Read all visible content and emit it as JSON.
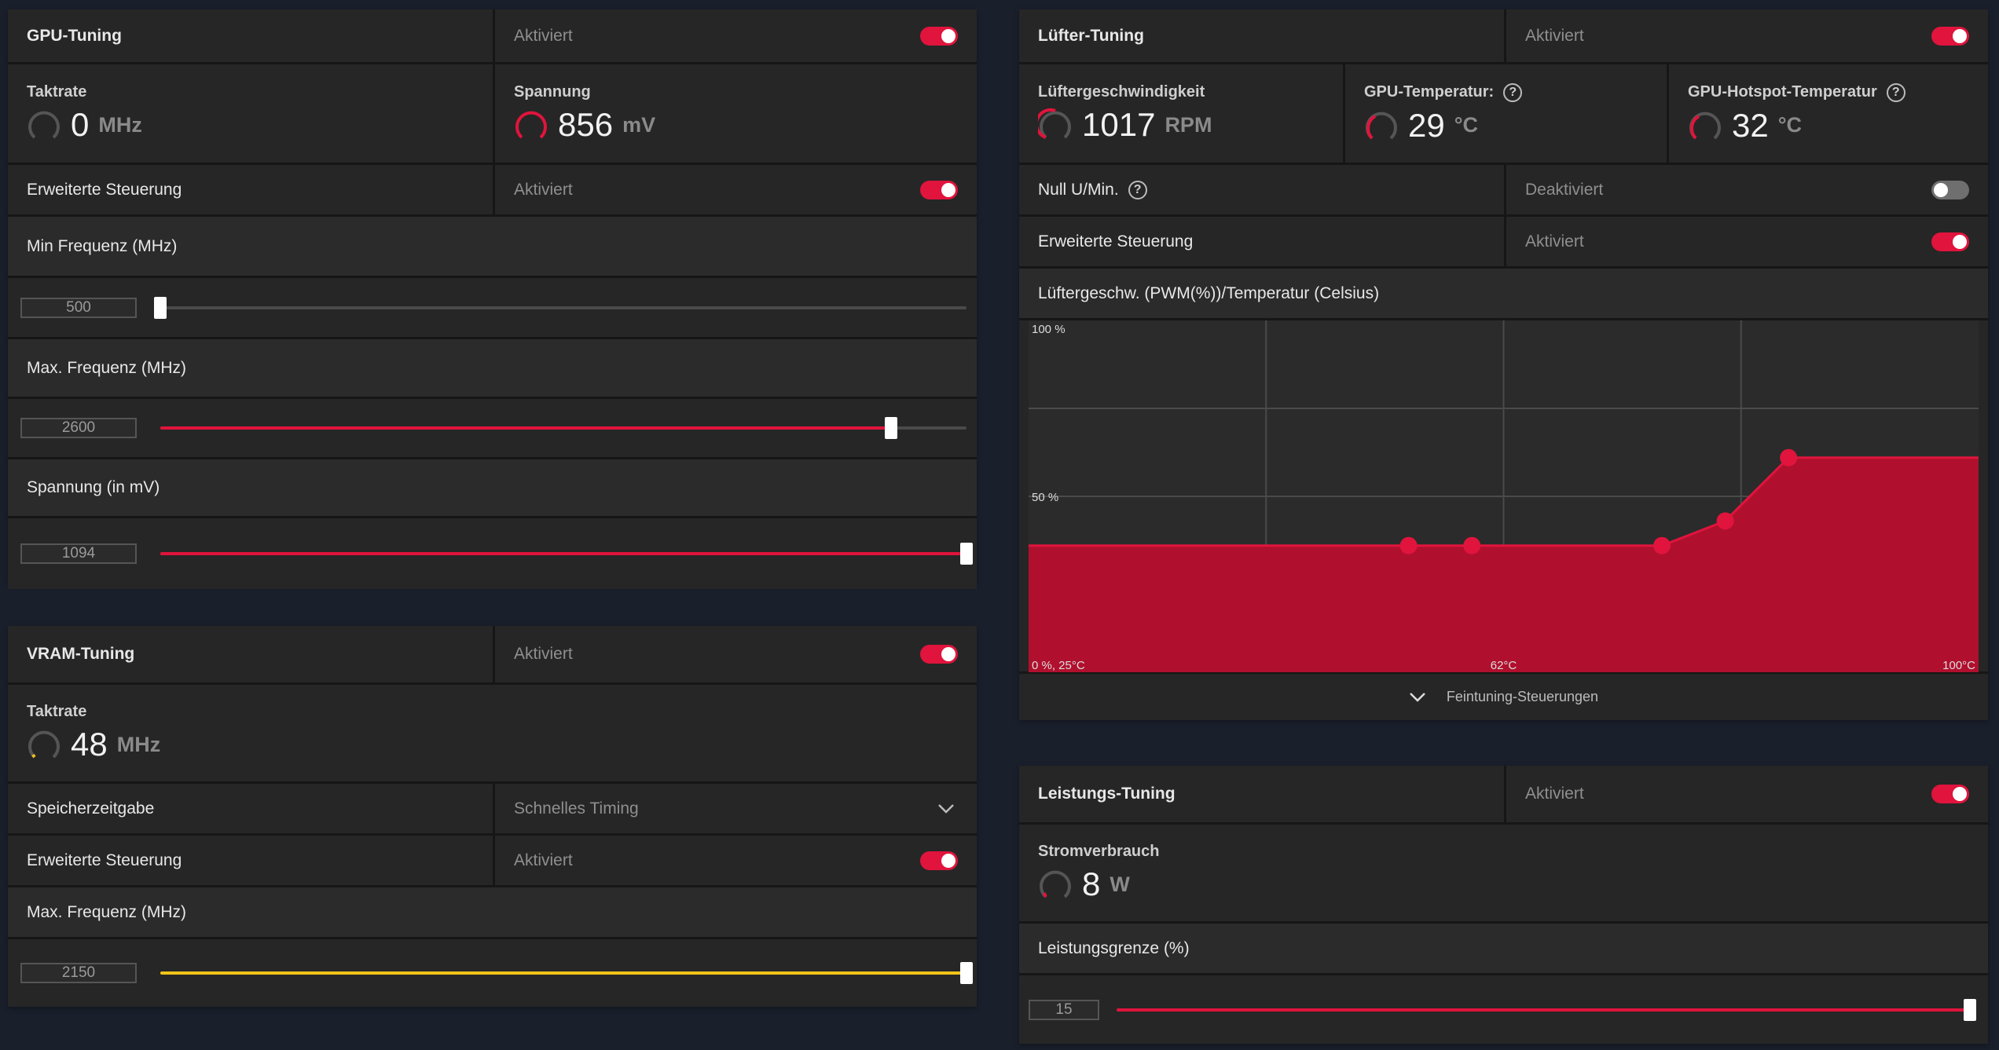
{
  "colors": {
    "accent": "#e0143c",
    "vram_accent": "#f0c419",
    "background": "#1a1f2c",
    "panel": "#262626"
  },
  "gpu": {
    "title": "GPU-Tuning",
    "status": "Aktiviert",
    "clock": {
      "label": "Taktrate",
      "value": "0",
      "unit": "MHz"
    },
    "voltage": {
      "label": "Spannung",
      "value": "856",
      "unit": "mV"
    },
    "advanced": {
      "label": "Erweiterte Steuerung",
      "status": "Aktiviert"
    },
    "min_freq": {
      "label": "Min Frequenz (MHz)",
      "value": "500",
      "fraction": 0.0
    },
    "max_freq": {
      "label": "Max. Frequenz (MHz)",
      "value": "2600",
      "fraction": 0.906
    },
    "volt_slider": {
      "label": "Spannung (in mV)",
      "value": "1094",
      "fraction": 1.0
    }
  },
  "vram": {
    "title": "VRAM-Tuning",
    "status": "Aktiviert",
    "clock": {
      "label": "Taktrate",
      "value": "48",
      "unit": "MHz"
    },
    "timing": {
      "label": "Speicherzeitgabe",
      "value": "Schnelles Timing"
    },
    "advanced": {
      "label": "Erweiterte Steuerung",
      "status": "Aktiviert"
    },
    "max_freq": {
      "label": "Max. Frequenz (MHz)",
      "value": "2150",
      "fraction": 1.0
    }
  },
  "fan": {
    "title": "Lüfter-Tuning",
    "status": "Aktiviert",
    "speed": {
      "label": "Lüftergeschwindigkeit",
      "value": "1017",
      "unit": "RPM"
    },
    "gpu_temp": {
      "label": "GPU-Temperatur:",
      "value": "29",
      "unit": "°C"
    },
    "hotspot_temp": {
      "label": "GPU-Hotspot-Temperatur",
      "value": "32",
      "unit": "°C"
    },
    "zero_rpm": {
      "label": "Null U/Min.",
      "status": "Deaktiviert"
    },
    "advanced": {
      "label": "Erweiterte Steuerung",
      "status": "Aktiviert"
    },
    "curve_title": "Lüftergeschw. (PWM(%))/Temperatur (Celsius)",
    "fine_tuning": "Feintuning-Steuerungen"
  },
  "power": {
    "title": "Leistungs-Tuning",
    "status": "Aktiviert",
    "consumption": {
      "label": "Stromverbrauch",
      "value": "8",
      "unit": "W"
    },
    "limit": {
      "label": "Leistungsgrenze (%)",
      "value": "15",
      "fraction": 1.0
    }
  },
  "chart_data": {
    "type": "area",
    "xlim": [
      25,
      100
    ],
    "ylim": [
      0,
      100
    ],
    "grid": true,
    "tick_labels": {
      "y_top": "100 %",
      "y_mid": "50 %",
      "origin": "0 %, 25°C",
      "x_mid": "62°C",
      "x_max": "100°C"
    },
    "points": [
      {
        "x": 55,
        "y": 36
      },
      {
        "x": 60,
        "y": 36
      },
      {
        "x": 75,
        "y": 36
      },
      {
        "x": 80,
        "y": 43
      },
      {
        "x": 85,
        "y": 61
      }
    ],
    "fill_color": "#b0102e",
    "point_color": "#e0143c"
  }
}
